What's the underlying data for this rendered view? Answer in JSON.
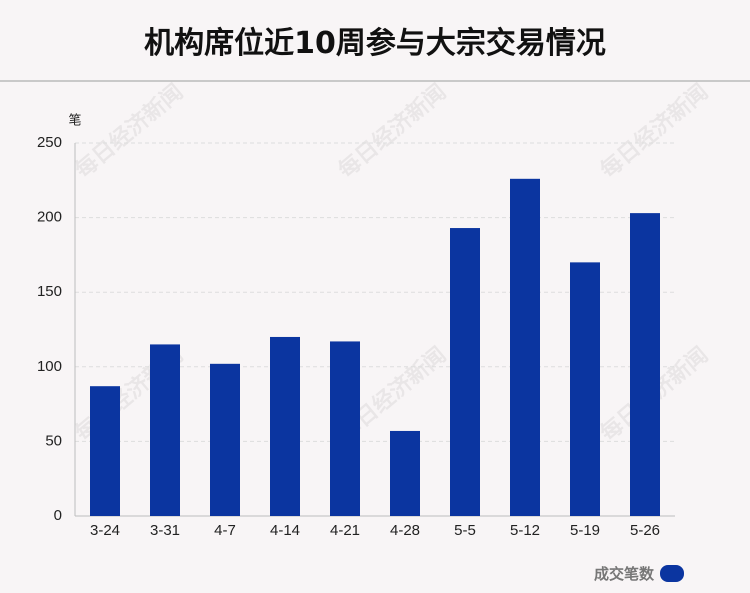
{
  "title": "机构席位近10周参与大宗交易情况",
  "watermark": "每日经济新闻",
  "colors": {
    "bar": "#0b35a0",
    "grid": "#dddddd",
    "axis": "#bdbdbd",
    "background": "#f8f5f6"
  },
  "chart_data": {
    "type": "bar",
    "ylabel": "笔",
    "ylim": [
      0,
      250
    ],
    "yticks": [
      0,
      50,
      100,
      150,
      200,
      250
    ],
    "categories": [
      "3-24",
      "3-31",
      "4-7",
      "4-14",
      "4-21",
      "4-28",
      "5-5",
      "5-12",
      "5-19",
      "5-26"
    ],
    "series": [
      {
        "name": "成交笔数",
        "values": [
          87,
          115,
          102,
          120,
          117,
          57,
          193,
          226,
          170,
          203
        ]
      }
    ],
    "grid": true,
    "legend_position": "bottom-right"
  }
}
